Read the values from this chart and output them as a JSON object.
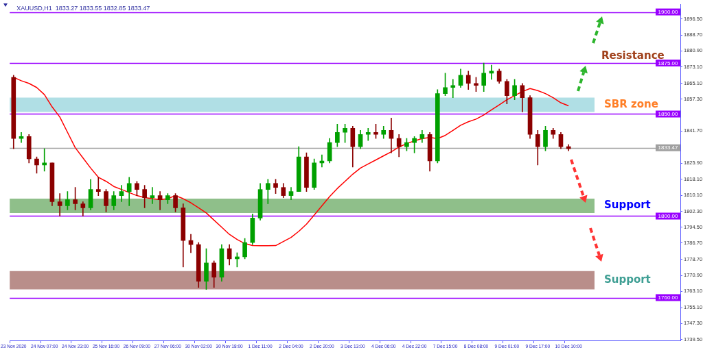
{
  "chart_data": {
    "type": "candlestick",
    "title": "XAUUSD,H1  1833.27 1833.55 1832.85 1833.47",
    "categories": [
      "23 Nov 2020",
      null,
      null,
      null,
      "24 Nov 07:00",
      null,
      null,
      null,
      "24 Nov 23:00",
      null,
      null,
      null,
      "25 Nov 16:00",
      null,
      null,
      null,
      "26 Nov 09:00",
      null,
      null,
      null,
      "27 Nov 06:00",
      null,
      null,
      null,
      "30 Nov 02:00",
      null,
      null,
      null,
      "30 Nov 18:00",
      null,
      null,
      null,
      "1 Dec 11:00",
      null,
      null,
      null,
      "2 Dec 04:00",
      null,
      null,
      null,
      "2 Dec 20:00",
      null,
      null,
      null,
      "3 Dec 13:00",
      null,
      null,
      null,
      "4 Dec 06:00",
      null,
      null,
      null,
      "4 Dec 22:00",
      null,
      null,
      null,
      "7 Dec 15:00",
      null,
      null,
      null,
      "8 Dec 08:00",
      null,
      null,
      null,
      "9 Dec 01:00",
      null,
      null,
      null,
      "9 Dec 17:00",
      null,
      null,
      null,
      "10 Dec 10:00",
      null,
      null,
      null,
      null,
      null,
      null,
      null,
      null,
      null,
      null,
      null,
      null,
      null,
      null
    ],
    "ohlc": [
      [
        1868,
        1869,
        1833,
        1838
      ],
      [
        1838,
        1841,
        1836,
        1839
      ],
      [
        1839,
        1840,
        1826,
        1828
      ],
      [
        1828,
        1829,
        1821,
        1825
      ],
      [
        1825,
        1833,
        1822,
        1826
      ],
      [
        1826,
        1826,
        1805,
        1807
      ],
      [
        1807,
        1811,
        1800,
        1805
      ],
      [
        1805,
        1812,
        1803,
        1808
      ],
      [
        1808,
        1814,
        1803,
        1806
      ],
      [
        1806,
        1807,
        1800,
        1804
      ],
      [
        1804,
        1818,
        1803,
        1813
      ],
      [
        1813,
        1819,
        1810,
        1812
      ],
      [
        1812,
        1813,
        1802,
        1805
      ],
      [
        1805,
        1812,
        1803,
        1810
      ],
      [
        1810,
        1815,
        1807,
        1812
      ],
      [
        1812,
        1819,
        1805,
        1816
      ],
      [
        1816,
        1817,
        1810,
        1813
      ],
      [
        1813,
        1815,
        1804,
        1809
      ],
      [
        1809,
        1814,
        1806,
        1810
      ],
      [
        1810,
        1812,
        1803,
        1808
      ],
      [
        1808,
        1811,
        1806,
        1810
      ],
      [
        1810,
        1811,
        1802,
        1804
      ],
      [
        1804,
        1806,
        1775,
        1788
      ],
      [
        1788,
        1791,
        1782,
        1786
      ],
      [
        1786,
        1787,
        1765,
        1768
      ],
      [
        1768,
        1784,
        1764,
        1777
      ],
      [
        1777,
        1778,
        1765,
        1770
      ],
      [
        1770,
        1786,
        1768,
        1784
      ],
      [
        1784,
        1786,
        1776,
        1779
      ],
      [
        1779,
        1782,
        1775,
        1780
      ],
      [
        1780,
        1789,
        1779,
        1787
      ],
      [
        1787,
        1801,
        1786,
        1799
      ],
      [
        1799,
        1816,
        1798,
        1813
      ],
      [
        1813,
        1818,
        1806,
        1816
      ],
      [
        1816,
        1818,
        1811,
        1814
      ],
      [
        1814,
        1816,
        1809,
        1810
      ],
      [
        1810,
        1814,
        1808,
        1812
      ],
      [
        1812,
        1834,
        1812,
        1829
      ],
      [
        1829,
        1831,
        1812,
        1814
      ],
      [
        1814,
        1828,
        1813,
        1826
      ],
      [
        1826,
        1830,
        1824,
        1827
      ],
      [
        1827,
        1838,
        1826,
        1836
      ],
      [
        1836,
        1845,
        1834,
        1841
      ],
      [
        1841,
        1845,
        1836,
        1843
      ],
      [
        1843,
        1844,
        1824,
        1834
      ],
      [
        1834,
        1842,
        1833,
        1840
      ],
      [
        1840,
        1843,
        1837,
        1841
      ],
      [
        1841,
        1845,
        1838,
        1840
      ],
      [
        1840,
        1844,
        1838,
        1842
      ],
      [
        1842,
        1848,
        1831,
        1838
      ],
      [
        1838,
        1840,
        1829,
        1834
      ],
      [
        1834,
        1838,
        1832,
        1836
      ],
      [
        1836,
        1839,
        1831,
        1838
      ],
      [
        1838,
        1842,
        1836,
        1840
      ],
      [
        1840,
        1841,
        1822,
        1827
      ],
      [
        1827,
        1862,
        1826,
        1860
      ],
      [
        1860,
        1870,
        1859,
        1863
      ],
      [
        1863,
        1867,
        1858,
        1864
      ],
      [
        1864,
        1872,
        1863,
        1869
      ],
      [
        1869,
        1871,
        1862,
        1865
      ],
      [
        1865,
        1868,
        1861,
        1864
      ],
      [
        1864,
        1875,
        1861,
        1870
      ],
      [
        1870,
        1874,
        1867,
        1871
      ],
      [
        1871,
        1872,
        1865,
        1866
      ],
      [
        1866,
        1867,
        1855,
        1859
      ],
      [
        1859,
        1867,
        1857,
        1864
      ],
      [
        1864,
        1865,
        1851,
        1858
      ],
      [
        1858,
        1859,
        1838,
        1840
      ],
      [
        1840,
        1842,
        1825,
        1834
      ],
      [
        1834,
        1844,
        1832,
        1842
      ],
      [
        1842,
        1843,
        1838,
        1840
      ],
      [
        1840,
        1841,
        1833,
        1834
      ],
      [
        1834,
        1835,
        1832,
        1833
      ],
      null,
      null,
      null,
      null,
      null,
      null,
      null,
      null,
      null,
      null,
      null,
      null,
      null,
      null
    ],
    "colors": [
      "#8b0000",
      "#00a000",
      "#8b0000",
      "#8b0000",
      "#00a000",
      "#8b0000",
      "#8b0000",
      "#00a000",
      "#8b0000",
      "#8b0000",
      "#00a000",
      "#8b0000",
      "#8b0000",
      "#00a000",
      "#00a000",
      "#00a000",
      "#8b0000",
      "#8b0000",
      "#00a000",
      "#8b0000",
      "#00a000",
      "#8b0000",
      "#8b0000",
      "#8b0000",
      "#8b0000",
      "#00a000",
      "#8b0000",
      "#00a000",
      "#8b0000",
      "#00a000",
      "#00a000",
      "#00a000",
      "#00a000",
      "#00a000",
      "#8b0000",
      "#8b0000",
      "#00a000",
      "#00a000",
      "#8b0000",
      "#00a000",
      "#00a000",
      "#00a000",
      "#00a000",
      "#00a000",
      "#8b0000",
      "#00a000",
      "#00a000",
      "#8b0000",
      "#00a000",
      "#8b0000",
      "#8b0000",
      "#00a000",
      "#00a000",
      "#00a000",
      "#8b0000",
      "#00a000",
      "#00a000",
      "#00a000",
      "#00a000",
      "#8b0000",
      "#8b0000",
      "#00a000",
      "#00a000",
      "#8b0000",
      "#8b0000",
      "#00a000",
      "#8b0000",
      "#8b0000",
      "#8b0000",
      "#00a000",
      "#8b0000",
      "#8b0000",
      "#8b0000",
      null,
      null,
      null,
      null,
      null,
      null,
      null,
      null,
      null,
      null,
      null,
      null,
      null,
      null
    ],
    "series": [
      {
        "type": "line",
        "color": "#ff0000",
        "values": [
          1868,
          1866.3,
          1865,
          1863,
          1859.5,
          1853.5,
          1848.5,
          1841,
          1833.5,
          1828.5,
          1823.5,
          1819,
          1817,
          1814.5,
          1813,
          1811.5,
          1810,
          1809,
          1808.5,
          1808,
          1808.5,
          1810,
          1808.5,
          1806.5,
          1804,
          1801.5,
          1798,
          1794.5,
          1791,
          1788.5,
          1786.5,
          1785.5,
          1785.4,
          1785.4,
          1785.5,
          1787.5,
          1789.5,
          1792.5,
          1796,
          1800.5,
          1805,
          1809.5,
          1813.5,
          1817,
          1820.5,
          1823.5,
          1825.5,
          1827.5,
          1829.5,
          1831.5,
          1833.8,
          1835.5,
          1836.8,
          1838,
          1838.5,
          1838,
          1839.5,
          1842,
          1844.5,
          1846.2,
          1847.5,
          1849.5,
          1852,
          1854.5,
          1857,
          1859,
          1861,
          1862.5,
          1861.5,
          1860,
          1858,
          1855.5,
          1854,
          null,
          null,
          null,
          null,
          null,
          null,
          null,
          null,
          null,
          null,
          null,
          null,
          null,
          null
        ]
      }
    ],
    "ylim": [
      1739.0,
      1903.7
    ],
    "yticks": [
      {
        "value": 1896.5,
        "label": "1896.50"
      },
      {
        "value": 1888.7,
        "label": "1888.70"
      },
      {
        "value": 1880.9,
        "label": "1880.90"
      },
      {
        "value": 1873.1,
        "label": "1873.10"
      },
      {
        "value": 1865.1,
        "label": "1865.10"
      },
      {
        "value": 1857.3,
        "label": "1857.30"
      },
      {
        "value": 1841.7,
        "label": "1841.70"
      },
      {
        "value": 1825.9,
        "label": "1825.90"
      },
      {
        "value": 1818.1,
        "label": "1818.10"
      },
      {
        "value": 1810.1,
        "label": "1810.10"
      },
      {
        "value": 1802.3,
        "label": "1802.30"
      },
      {
        "value": 1794.5,
        "label": "1794.50"
      },
      {
        "value": 1786.7,
        "label": "1786.70"
      },
      {
        "value": 1778.7,
        "label": "1778.70"
      },
      {
        "value": 1770.9,
        "label": "1770.90"
      },
      {
        "value": 1763.1,
        "label": "1763.10"
      },
      {
        "value": 1755.1,
        "label": "1755.10"
      },
      {
        "value": 1747.3,
        "label": "1747.30"
      },
      {
        "value": 1739.5,
        "label": "1739.50"
      }
    ],
    "ref_lines": [
      {
        "axis": "y",
        "value": 1900,
        "label": "1900.00",
        "color": "#9900ff"
      },
      {
        "axis": "y",
        "value": 1875,
        "label": "1875.00",
        "color": "#9900ff"
      },
      {
        "axis": "y",
        "value": 1850,
        "label": "1850.00",
        "color": "#9900ff"
      },
      {
        "axis": "y",
        "value": 1800,
        "label": "1800.00",
        "color": "#9900ff"
      },
      {
        "axis": "y",
        "value": 1760,
        "label": "1760.00",
        "color": "#9900ff"
      },
      {
        "axis": "y",
        "value": 1833.47,
        "label": "1833.47",
        "color": "#a0a0a0"
      }
    ],
    "bands": [
      {
        "axis": "y",
        "from": 1851,
        "to": 1858,
        "label": "SBR zone",
        "color": "#b0dfe5"
      },
      {
        "axis": "y",
        "from": 1801.5,
        "to": 1808.5,
        "label": "Support",
        "color": "#8fbf8a"
      },
      {
        "axis": "y",
        "from": 1764,
        "to": 1773,
        "label": "Support",
        "color": "#b98e8a"
      }
    ],
    "annotations": [
      {
        "text": "Resistance",
        "y": 1875
      }
    ],
    "legend": false,
    "marker": "none"
  }
}
